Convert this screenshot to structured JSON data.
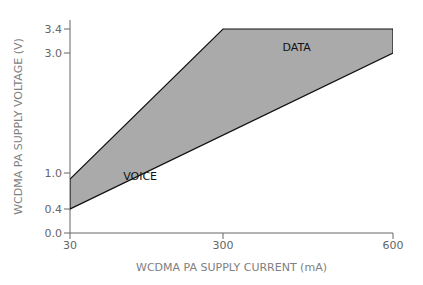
{
  "chart_data": {
    "type": "polygon",
    "xlabel": "WCDMA PA SUPPLY CURRENT (mA)",
    "ylabel": "WCDMA PA SUPPLY VOLTAGE (V)",
    "x": [
      30,
      30,
      300,
      600,
      600
    ],
    "values": [
      0.4,
      0.9,
      3.4,
      3.4,
      3.0
    ],
    "color": "#aaaaaa",
    "xlim": [
      30,
      600
    ],
    "ylim": [
      0.0,
      3.55
    ],
    "xticks": [
      30,
      300,
      600
    ],
    "yticks": [
      {
        "value": 0.0,
        "label": "0.0"
      },
      {
        "value": 0.4,
        "label": "0.4"
      },
      {
        "value": 1.0,
        "label": "1.0"
      },
      {
        "value": 3.0,
        "label": "3.0"
      },
      {
        "value": 3.4,
        "label": "3.4"
      }
    ],
    "annotations": [
      {
        "text": "VOICE",
        "x": 115,
        "y": 0.95,
        "align": "left"
      },
      {
        "text": "DATA",
        "x": 430,
        "y": 3.1,
        "align": "center"
      }
    ],
    "grid": false
  }
}
